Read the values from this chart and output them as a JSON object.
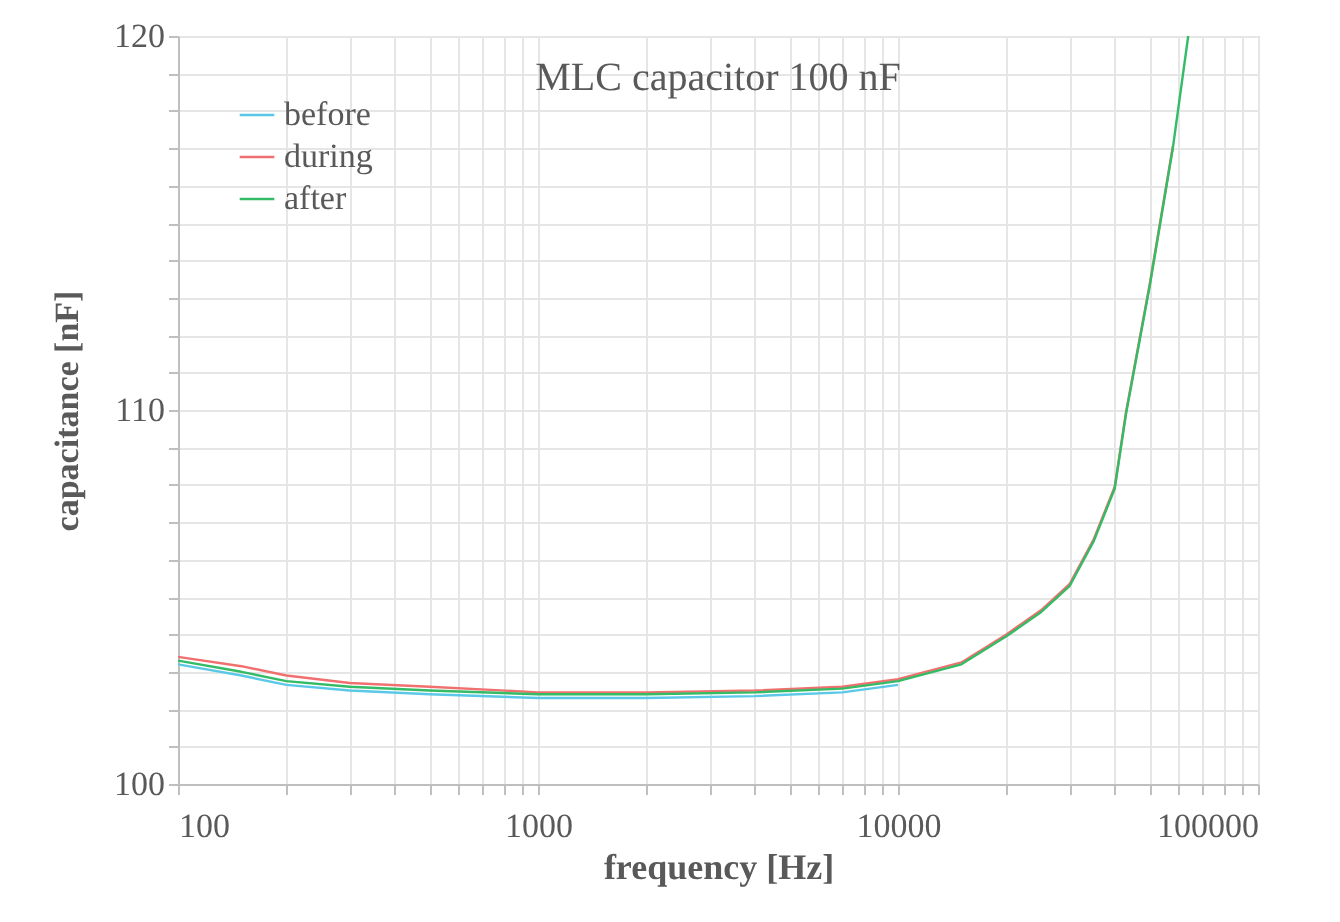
{
  "chart_data": {
    "type": "line",
    "title": "MLC capacitor 100 nF",
    "xlabel": "frequency [Hz]",
    "ylabel": "capacitance [nF]",
    "x": [
      100,
      150,
      200,
      300,
      500,
      1000,
      2000,
      4000,
      7000,
      10000,
      15000,
      20000,
      25000,
      30000,
      35000,
      40000,
      43000,
      50000,
      58000,
      64000
    ],
    "series": [
      {
        "name": "before",
        "color": "#5bc8e8",
        "values": [
          103.2,
          102.9,
          102.65,
          102.5,
          102.4,
          102.3,
          102.3,
          102.35,
          102.45,
          102.65,
          null,
          null,
          null,
          null,
          null,
          null,
          null,
          null,
          null,
          null
        ]
      },
      {
        "name": "during",
        "color": "#f07070",
        "values": [
          103.4,
          103.15,
          102.9,
          102.7,
          102.6,
          102.45,
          102.45,
          102.5,
          102.6,
          102.8,
          103.25,
          104.0,
          104.65,
          105.35,
          106.55,
          107.95,
          109.95,
          113.35,
          117.05,
          null
        ]
      },
      {
        "name": "after",
        "color": "#33bb66",
        "values": [
          103.3,
          103.0,
          102.75,
          102.6,
          102.5,
          102.4,
          102.4,
          102.45,
          102.55,
          102.75,
          103.2,
          103.95,
          104.6,
          105.3,
          106.5,
          107.9,
          109.9,
          113.3,
          117,
          120
        ]
      }
    ],
    "log": "x",
    "xlim": [
      100,
      100000
    ],
    "ylim": [
      100,
      120
    ],
    "xticks": [
      100,
      {
        "value": 200,
        "label": null
      },
      {
        "value": 300,
        "label": null
      },
      {
        "value": 400,
        "label": null
      },
      {
        "value": 500,
        "label": null
      },
      {
        "value": 600,
        "label": null
      },
      {
        "value": 700,
        "label": null
      },
      {
        "value": 800,
        "label": null
      },
      {
        "value": 900,
        "label": null
      },
      1000,
      {
        "value": 2000,
        "label": null
      },
      {
        "value": 3000,
        "label": null
      },
      {
        "value": 4000,
        "label": null
      },
      {
        "value": 5000,
        "label": null
      },
      {
        "value": 6000,
        "label": null
      },
      {
        "value": 7000,
        "label": null
      },
      {
        "value": 8000,
        "label": null
      },
      {
        "value": 9000,
        "label": null
      },
      10000,
      {
        "value": 20000,
        "label": null
      },
      {
        "value": 30000,
        "label": null
      },
      {
        "value": 40000,
        "label": null
      },
      {
        "value": 50000,
        "label": null
      },
      {
        "value": 60000,
        "label": null
      },
      {
        "value": 70000,
        "label": null
      },
      {
        "value": 80000,
        "label": null
      },
      {
        "value": 90000,
        "label": null
      },
      100000
    ],
    "yticks": [
      100,
      {
        "value": 101,
        "label": null
      },
      {
        "value": 102,
        "label": null
      },
      {
        "value": 103,
        "label": null
      },
      {
        "value": 104,
        "label": null
      },
      {
        "value": 105,
        "label": null
      },
      {
        "value": 106,
        "label": null
      },
      {
        "value": 107,
        "label": null
      },
      {
        "value": 108,
        "label": null
      },
      {
        "value": 109,
        "label": null
      },
      110,
      {
        "value": 111,
        "label": null
      },
      {
        "value": 112,
        "label": null
      },
      {
        "value": 113,
        "label": null
      },
      {
        "value": 114,
        "label": null
      },
      {
        "value": 115,
        "label": null
      },
      {
        "value": 116,
        "label": null
      },
      {
        "value": 117,
        "label": null
      },
      {
        "value": 118,
        "label": null
      },
      {
        "value": 119,
        "label": null
      },
      120
    ],
    "grid": true,
    "legend": "top left",
    "line_style": "solid",
    "marker": "none"
  }
}
